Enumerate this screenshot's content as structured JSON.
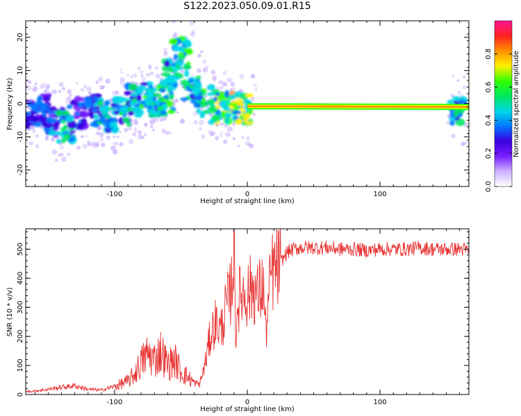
{
  "title": "S122.2023.050.09.01.R15",
  "chart_data": [
    {
      "type": "heatmap",
      "xlabel": "Height of straight line (km)",
      "ylabel": "Frequency (Hz)",
      "xlim": [
        -167,
        167
      ],
      "ylim": [
        -25,
        25
      ],
      "x_ticks": [
        -100,
        0,
        100
      ],
      "y_ticks": [
        -20,
        -10,
        0,
        10,
        20
      ],
      "grid": false,
      "colorbar": {
        "label": "Normalized spectral amplitude",
        "range": [
          0.0,
          1.0
        ],
        "ticks": [
          0.0,
          0.2,
          0.4,
          0.6,
          0.8
        ],
        "colors": [
          "#ffffff",
          "#ccb3ff",
          "#7a1fff",
          "#3b00e0",
          "#0077ff",
          "#00d8e6",
          "#00e860",
          "#30ff00",
          "#fff000",
          "#ff9000",
          "#ff2020",
          "#ff1493"
        ]
      },
      "carrier": {
        "x_start": 0,
        "x_end": 167,
        "frequency_start": -0.8,
        "frequency_end": -1.0,
        "amplitude": 0.9
      },
      "clusters": [
        {
          "x": -165,
          "frequency": -3,
          "amplitude": 0.4
        },
        {
          "x": -155,
          "frequency": -2,
          "amplitude": 0.45
        },
        {
          "x": -145,
          "frequency": -5,
          "amplitude": 0.45
        },
        {
          "x": -137,
          "frequency": -7,
          "amplitude": 0.55
        },
        {
          "x": -128,
          "frequency": -3,
          "amplitude": 0.4
        },
        {
          "x": -115,
          "frequency": -2,
          "amplitude": 0.45
        },
        {
          "x": -105,
          "frequency": -4,
          "amplitude": 0.55
        },
        {
          "x": -95,
          "frequency": -3,
          "amplitude": 0.55
        },
        {
          "x": -85,
          "frequency": 1,
          "amplitude": 0.6
        },
        {
          "x": -77,
          "frequency": 2,
          "amplitude": 0.65
        },
        {
          "x": -70,
          "frequency": 0,
          "amplitude": 0.6
        },
        {
          "x": -62,
          "frequency": 1,
          "amplitude": 0.65
        },
        {
          "x": -57,
          "frequency": 10,
          "amplitude": 0.6
        },
        {
          "x": -50,
          "frequency": 15,
          "amplitude": 0.65
        },
        {
          "x": -42,
          "frequency": 5,
          "amplitude": 0.6
        },
        {
          "x": -33,
          "frequency": 1,
          "amplitude": 0.65
        },
        {
          "x": -22,
          "frequency": -1,
          "amplitude": 0.75
        },
        {
          "x": -12,
          "frequency": -1,
          "amplitude": 0.8
        },
        {
          "x": -3,
          "frequency": -2,
          "amplitude": 0.75
        },
        {
          "x": 160,
          "frequency": -1.5,
          "amplitude": 0.55
        }
      ]
    },
    {
      "type": "line",
      "xlabel": "Height of straight line (km)",
      "ylabel": "SNR (10 * v/v)",
      "xlim": [
        -167,
        167
      ],
      "ylim": [
        0,
        570
      ],
      "x_ticks": [
        -100,
        0,
        100
      ],
      "y_ticks": [
        0,
        100,
        200,
        300,
        400,
        500
      ],
      "grid": false,
      "color": "#e83030",
      "x": [
        -167,
        -160,
        -150,
        -140,
        -130,
        -120,
        -110,
        -100,
        -90,
        -85,
        -80,
        -75,
        -70,
        -65,
        -60,
        -55,
        -50,
        -45,
        -40,
        -36,
        -32,
        -28,
        -24,
        -20,
        -16,
        -13,
        -11,
        -10,
        -9,
        -7,
        -4,
        0,
        4,
        8,
        12,
        14,
        18,
        22,
        26,
        30,
        35,
        40,
        50,
        60,
        70,
        80,
        90,
        100,
        110,
        120,
        130,
        140,
        150,
        160,
        167
      ],
      "values": [
        10,
        12,
        18,
        25,
        30,
        18,
        15,
        28,
        45,
        70,
        110,
        140,
        120,
        150,
        100,
        120,
        80,
        60,
        40,
        35,
        100,
        200,
        250,
        220,
        300,
        340,
        410,
        570,
        200,
        320,
        350,
        345,
        370,
        340,
        380,
        210,
        420,
        430,
        460,
        490,
        500,
        505,
        505,
        505,
        500,
        500,
        495,
        500,
        500,
        500,
        505,
        500,
        500,
        500,
        495
      ]
    }
  ]
}
